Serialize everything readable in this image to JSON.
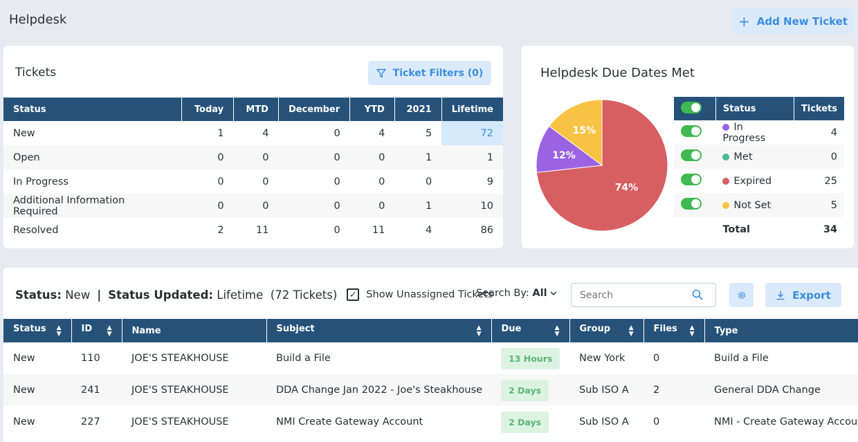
{
  "page": {
    "title": "Helpdesk",
    "add_button": "Add New Ticket"
  },
  "tickets_card": {
    "title": "Tickets",
    "filters_button": "Ticket Filters (0)",
    "columns": [
      "Status",
      "Today",
      "MTD",
      "December",
      "YTD",
      "2021",
      "Lifetime"
    ],
    "rows": [
      {
        "status": "New",
        "today": "1",
        "mtd": "4",
        "december": "0",
        "ytd": "4",
        "y2021": "5",
        "lifetime": "72"
      },
      {
        "status": "Open",
        "today": "0",
        "mtd": "0",
        "december": "0",
        "ytd": "0",
        "y2021": "1",
        "lifetime": "1"
      },
      {
        "status": "In Progress",
        "today": "0",
        "mtd": "0",
        "december": "0",
        "ytd": "0",
        "y2021": "0",
        "lifetime": "9"
      },
      {
        "status": "Additional Information Required",
        "today": "0",
        "mtd": "0",
        "december": "0",
        "ytd": "0",
        "y2021": "1",
        "lifetime": "10"
      },
      {
        "status": "Resolved",
        "today": "2",
        "mtd": "11",
        "december": "0",
        "ytd": "11",
        "y2021": "4",
        "lifetime": "86"
      }
    ]
  },
  "due_card": {
    "title": "Helpdesk Due Dates Met",
    "columns": [
      "Status",
      "Tickets"
    ],
    "rows": [
      {
        "status": "In Progress",
        "tickets": "4",
        "color": "#9b63e4"
      },
      {
        "status": "Met",
        "tickets": "0",
        "color": "#4dbd8d"
      },
      {
        "status": "Expired",
        "tickets": "25",
        "color": "#d75f62"
      },
      {
        "status": "Not Set",
        "tickets": "5",
        "color": "#f8c344"
      }
    ],
    "total_label": "Total",
    "total_value": "34"
  },
  "chart_data": {
    "type": "pie",
    "slices": [
      {
        "label": "Expired",
        "value": 74,
        "display": "74%",
        "color": "#d75f62"
      },
      {
        "label": "In Progress",
        "value": 12,
        "display": "12%",
        "color": "#9b63e4"
      },
      {
        "label": "Not Set",
        "value": 15,
        "display": "15%",
        "color": "#f8c344"
      }
    ],
    "start_angle_deg": 0
  },
  "list_card": {
    "status_label": "Status:",
    "status_value": "New",
    "separator": "|",
    "updated_label": "Status Updated:",
    "updated_value": "Lifetime",
    "count": "(72 Tickets)",
    "checkbox_mark": "✓",
    "show_unassigned": "Show Unassigned Tickets",
    "search_by_label": "Search By:",
    "search_by_value": "All",
    "search_placeholder": "Search",
    "export": "Export",
    "columns": [
      "Status",
      "ID",
      "Name",
      "Subject",
      "Due",
      "Group",
      "Files",
      "Type"
    ],
    "rows": [
      {
        "status": "New",
        "id": "110",
        "name": "JOE'S STEAKHOUSE",
        "subject": "Build a File",
        "due": "13 Hours",
        "group": "New York",
        "files": "0",
        "type": "Build a File"
      },
      {
        "status": "New",
        "id": "241",
        "name": "JOE'S STEAKHOUSE",
        "subject": "DDA Change Jan 2022 - Joe's Steakhouse",
        "due": "2 Days",
        "group": "Sub ISO A",
        "files": "2",
        "type": "General DDA Change"
      },
      {
        "status": "New",
        "id": "227",
        "name": "JOE'S STEAKHOUSE",
        "subject": "NMI Create Gateway Account",
        "due": "2 Days",
        "group": "Sub ISO A",
        "files": "0",
        "type": "NMI - Create Gateway Account"
      }
    ]
  }
}
